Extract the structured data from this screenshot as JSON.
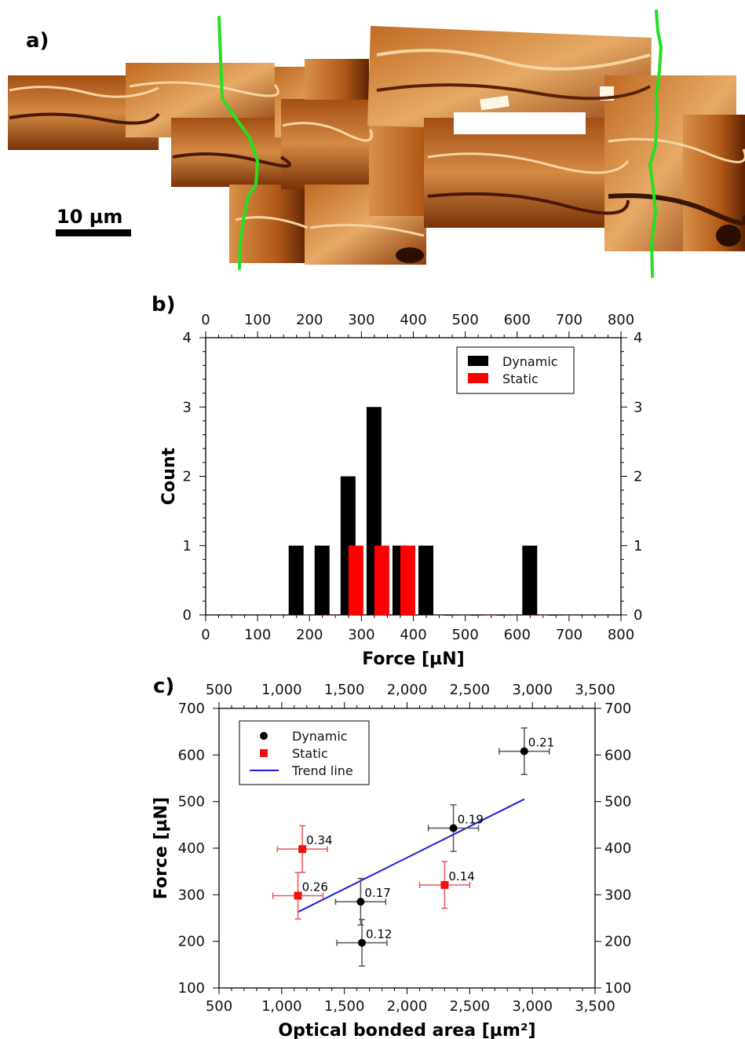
{
  "panel_a": {
    "label": "a)",
    "scalebar_label": "10 µm",
    "colors": {
      "dark": "#3a1603",
      "mid": "#b45a18",
      "light": "#f2c68e",
      "highlight": "#fff6e6",
      "boundary": "#22e022"
    }
  },
  "chart_data": [
    {
      "panel_label": "b)",
      "type": "bar",
      "xlabel": "Force [µN]",
      "ylabel": "Count",
      "xlim": [
        0,
        800
      ],
      "ylim": [
        0,
        4
      ],
      "xticks": [
        0,
        100,
        200,
        300,
        400,
        500,
        600,
        700,
        800
      ],
      "yticks": [
        0,
        1,
        2,
        3,
        4
      ],
      "legend_position": "top-right",
      "series": [
        {
          "name": "Dynamic",
          "color": "#000000",
          "x": [
            175,
            225,
            275,
            325,
            375,
            425,
            475,
            525,
            575,
            625,
            675
          ],
          "values": [
            1,
            1,
            2,
            3,
            1,
            1,
            0,
            0,
            0,
            1,
            0
          ]
        },
        {
          "name": "Static",
          "color": "#ff0000",
          "x": [
            175,
            225,
            275,
            325,
            375,
            425,
            475,
            525,
            575,
            625,
            675
          ],
          "values": [
            0,
            0,
            1,
            1,
            1,
            0,
            0,
            0,
            0,
            0,
            0
          ]
        }
      ]
    },
    {
      "panel_label": "c)",
      "type": "scatter",
      "xlabel": "Optical bonded area [µm²]",
      "ylabel": "Force [µN]",
      "xlim": [
        500,
        3500
      ],
      "ylim": [
        100,
        700
      ],
      "xticks": [
        500,
        1000,
        1500,
        2000,
        2500,
        3000,
        3500
      ],
      "xtick_labels": [
        "500",
        "1,000",
        "1,500",
        "2,000",
        "2,500",
        "3,000",
        "3,500"
      ],
      "yticks": [
        100,
        200,
        300,
        400,
        500,
        600,
        700
      ],
      "legend_position": "top-left",
      "series": [
        {
          "name": "Dynamic",
          "color": "#000000",
          "marker": "circle",
          "points": [
            {
              "x": 1630,
              "y": 285,
              "xerr": 200,
              "yerr": 50,
              "label": "0.17"
            },
            {
              "x": 1640,
              "y": 197,
              "xerr": 200,
              "yerr": 50,
              "label": "0.12"
            },
            {
              "x": 2370,
              "y": 443,
              "xerr": 200,
              "yerr": 50,
              "label": "0.19"
            },
            {
              "x": 2935,
              "y": 608,
              "xerr": 200,
              "yerr": 50,
              "label": "0.21"
            }
          ]
        },
        {
          "name": "Static",
          "color": "#ee1111",
          "marker": "square",
          "points": [
            {
              "x": 1165,
              "y": 398,
              "xerr": 200,
              "yerr": 50,
              "label": "0.34"
            },
            {
              "x": 1130,
              "y": 298,
              "xerr": 200,
              "yerr": 50,
              "label": "0.26"
            },
            {
              "x": 2300,
              "y": 321,
              "xerr": 200,
              "yerr": 50,
              "label": "0.14"
            }
          ]
        },
        {
          "name": "Trend line",
          "color": "#1a1adb",
          "type": "line",
          "points": [
            {
              "x": 1130,
              "y": 263
            },
            {
              "x": 2935,
              "y": 505
            }
          ]
        }
      ]
    }
  ]
}
